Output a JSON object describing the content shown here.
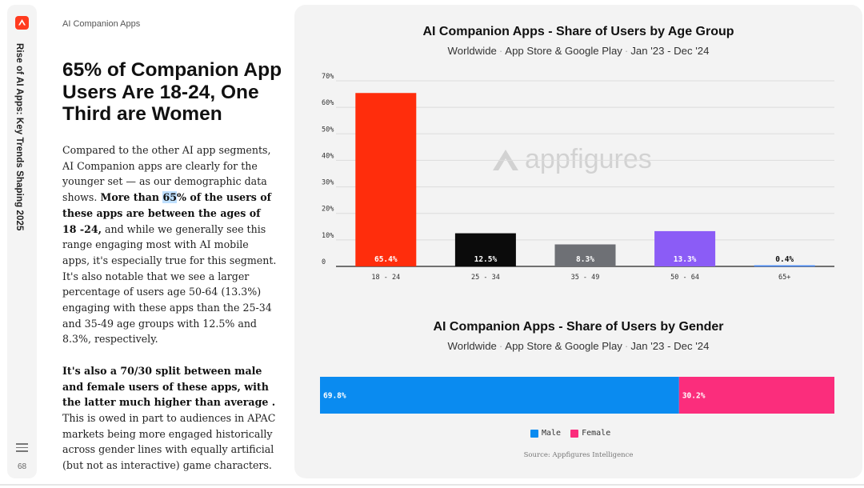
{
  "rail": {
    "title": "Rise of AI Apps: Key Trends Shaping 2025",
    "page_number": "68",
    "logo_icon": "appfigures-logo-icon",
    "menu_icon": "menu-icon"
  },
  "kicker": "AI Companion Apps",
  "headline": "65% of Companion App Users Are 18-24, One Third are Women",
  "body": {
    "p1_a": "Compared to the other AI app segments, AI Companion apps are clearly for the younger set — as our demographic data shows. ",
    "p1_b1": "More than ",
    "p1_hl": "65",
    "p1_b2": "% of the users of these apps are between the ages of 18 -24,",
    "p1_c": " and while we generally see this range engaging most with AI mobile apps, it's especially true for this segment.",
    "p2": "It's also notable that we see a larger percentage of users age 50-64 (13.3%) engaging with these apps than the 25-34 and 35-49 age groups with 12.5% and 8.3%, respectively.",
    "p3_b": "It's also a 70/30 split between male and female users of these apps, with the latter much higher than average .",
    "p3_c": " This is owed in part to audiences in APAC markets being more engaged historically across gender lines with equally artificial (but not as interactive) game characters."
  },
  "watermark": "appfigures",
  "source": "Source: Appfigures Intelligence",
  "chart_data": [
    {
      "type": "bar",
      "title": "AI Companion Apps - Share of Users by Age Group",
      "subtitle_parts": [
        "Worldwide",
        "App Store & Google Play",
        "Jan '23 - Dec '24"
      ],
      "categories": [
        "18 - 24",
        "25 - 34",
        "35 - 49",
        "50 - 64",
        "65+"
      ],
      "values": [
        65.4,
        12.5,
        8.3,
        13.3,
        0.4
      ],
      "value_labels": [
        "65.4%",
        "12.5%",
        "8.3%",
        "13.3%",
        "0.4%"
      ],
      "colors": [
        "#ff2d0c",
        "#0b0b0b",
        "#6e7075",
        "#8b5cf6",
        "#3b82f6"
      ],
      "yticks": [
        "0",
        "10%",
        "20%",
        "30%",
        "40%",
        "50%",
        "60%",
        "70%"
      ],
      "ylim": [
        0,
        70
      ],
      "grid": true
    },
    {
      "type": "bar",
      "orientation": "horizontal-stacked",
      "title": "AI Companion Apps - Share of Users by Gender",
      "subtitle_parts": [
        "Worldwide",
        "App Store & Google Play",
        "Jan '23 - Dec '24"
      ],
      "series": [
        {
          "name": "Male",
          "values": [
            69.8
          ],
          "label": "69.8%",
          "color": "#0a8bf0"
        },
        {
          "name": "Female",
          "values": [
            30.2
          ],
          "label": "30.2%",
          "color": "#fb2d7c"
        }
      ],
      "legend": "bottom-center"
    }
  ]
}
